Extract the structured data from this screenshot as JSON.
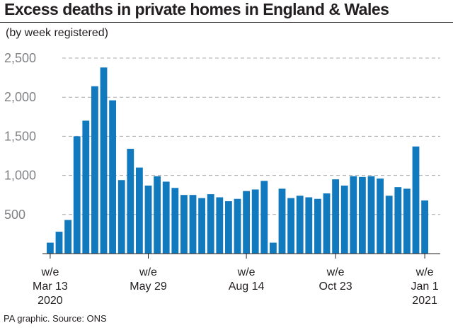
{
  "title": "Excess deaths in private homes in England & Wales",
  "subtitle": "(by week registered)",
  "source": "PA graphic. Source: ONS",
  "colors": {
    "bar": "#1179be",
    "grid": "#a7a9ac",
    "axis": "#231f20"
  },
  "chart_data": {
    "type": "bar",
    "title": "Excess deaths in private homes in England & Wales",
    "subtitle": "(by week registered)",
    "xlabel": "",
    "ylabel": "",
    "ylim": [
      0,
      2500
    ],
    "yticks": [
      500,
      1000,
      1500,
      2000,
      2500
    ],
    "ytick_labels": [
      "500",
      "1,000",
      "1,500",
      "2,000",
      "2,500"
    ],
    "grid": "horizontal dashed",
    "values": [
      140,
      280,
      430,
      1500,
      1700,
      2140,
      2380,
      1960,
      940,
      1340,
      1100,
      870,
      990,
      920,
      840,
      750,
      750,
      710,
      760,
      720,
      670,
      700,
      800,
      820,
      930,
      140,
      830,
      710,
      740,
      720,
      700,
      770,
      950,
      870,
      990,
      980,
      990,
      960,
      740,
      850,
      830,
      1370,
      680
    ],
    "x_tick_labels": [
      {
        "index": 0,
        "lines": [
          "w/e",
          "Mar 13",
          "2020"
        ]
      },
      {
        "index": 11,
        "lines": [
          "w/e",
          "May 29"
        ]
      },
      {
        "index": 22,
        "lines": [
          "w/e",
          "Aug 14"
        ]
      },
      {
        "index": 32,
        "lines": [
          "w/e",
          "Oct 23"
        ]
      },
      {
        "index": 42,
        "lines": [
          "w/e",
          "Jan 1",
          "2021"
        ]
      }
    ]
  }
}
